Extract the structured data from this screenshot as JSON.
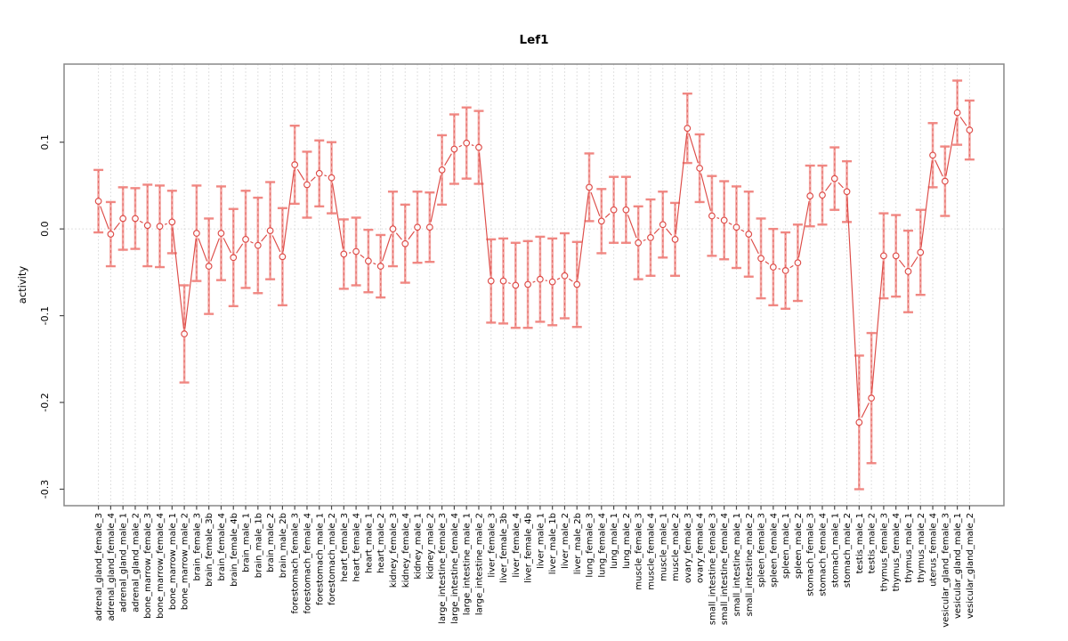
{
  "chart_data": {
    "type": "line",
    "title": "Lef1",
    "xlabel": "",
    "ylabel": "activity",
    "ylim": [
      -0.319,
      0.19
    ],
    "yticks": [
      0.1,
      0.0,
      -0.1,
      -0.2,
      -0.3
    ],
    "ytick_labels": [
      "0.1",
      "0.0",
      "-0.1",
      "-0.2",
      "-0.3"
    ],
    "grid": "dotted vertical line at every category; dotted horizontal line at y=0",
    "legend": "none",
    "error_bars": true,
    "marker": "open-circle",
    "categories": [
      "adrenal_gland_female_3",
      "adrenal_gland_female_4",
      "adrenal_gland_male_1",
      "adrenal_gland_male_2",
      "bone_marrow_female_3",
      "bone_marrow_female_4",
      "bone_marrow_male_1",
      "bone_marrow_male_2",
      "brain_female_3",
      "brain_female_3b",
      "brain_female_4",
      "brain_female_4b",
      "brain_male_1",
      "brain_male_1b",
      "brain_male_2",
      "brain_male_2b",
      "forestomach_female_3",
      "forestomach_female_4",
      "forestomach_male_1",
      "forestomach_male_2",
      "heart_female_3",
      "heart_female_4",
      "heart_male_1",
      "heart_male_2",
      "kidney_female_3",
      "kidney_female_4",
      "kidney_male_1",
      "kidney_male_2",
      "large_intestine_female_3",
      "large_intestine_female_4",
      "large_intestine_male_1",
      "large_intestine_male_2",
      "liver_female_3",
      "liver_female_3b",
      "liver_female_4",
      "liver_female_4b",
      "liver_male_1",
      "liver_male_1b",
      "liver_male_2",
      "liver_male_2b",
      "lung_female_3",
      "lung_female_4",
      "lung_male_1",
      "lung_male_2",
      "muscle_female_3",
      "muscle_female_4",
      "muscle_male_1",
      "muscle_male_2",
      "ovary_female_3",
      "ovary_female_4",
      "small_intestine_female_3",
      "small_intestine_female_4",
      "small_intestine_male_1",
      "small_intestine_male_2",
      "spleen_female_3",
      "spleen_female_4",
      "spleen_male_1",
      "spleen_male_2",
      "stomach_female_3",
      "stomach_female_4",
      "stomach_male_1",
      "stomach_male_2",
      "testis_male_1",
      "testis_male_2",
      "thymus_female_3",
      "thymus_female_4",
      "thymus_male_1",
      "thymus_male_2",
      "uterus_female_4",
      "vesicular_gland_female_3",
      "vesicular_gland_male_1",
      "vesicular_gland_male_2"
    ],
    "series": [
      {
        "name": "activity",
        "values": [
          0.032,
          -0.006,
          0.012,
          0.012,
          0.004,
          0.003,
          0.008,
          -0.121,
          -0.005,
          -0.043,
          -0.005,
          -0.033,
          -0.012,
          -0.019,
          -0.002,
          -0.032,
          0.074,
          0.051,
          0.064,
          0.059,
          -0.029,
          -0.026,
          -0.037,
          -0.043,
          0.0,
          -0.017,
          0.002,
          0.002,
          0.068,
          0.092,
          0.099,
          0.094,
          -0.06,
          -0.06,
          -0.065,
          -0.064,
          -0.058,
          -0.061,
          -0.054,
          -0.064,
          0.048,
          0.009,
          0.022,
          0.022,
          -0.016,
          -0.01,
          0.005,
          -0.012,
          0.116,
          0.07,
          0.015,
          0.01,
          0.002,
          -0.006,
          -0.034,
          -0.044,
          -0.048,
          -0.039,
          0.038,
          0.039,
          0.058,
          0.043,
          -0.223,
          -0.195,
          -0.031,
          -0.031,
          -0.049,
          -0.027,
          0.085,
          0.055,
          0.134,
          0.114
        ],
        "errors": [
          0.036,
          0.037,
          0.036,
          0.035,
          0.047,
          0.047,
          0.036,
          0.056,
          0.055,
          0.055,
          0.054,
          0.056,
          0.056,
          0.055,
          0.056,
          0.056,
          0.045,
          0.038,
          0.038,
          0.041,
          0.04,
          0.039,
          0.036,
          0.036,
          0.043,
          0.045,
          0.041,
          0.04,
          0.04,
          0.04,
          0.041,
          0.042,
          0.048,
          0.049,
          0.049,
          0.05,
          0.049,
          0.05,
          0.049,
          0.049,
          0.039,
          0.037,
          0.038,
          0.038,
          0.042,
          0.044,
          0.038,
          0.042,
          0.04,
          0.039,
          0.046,
          0.045,
          0.047,
          0.049,
          0.046,
          0.044,
          0.044,
          0.044,
          0.035,
          0.034,
          0.036,
          0.035,
          0.077,
          0.075,
          0.049,
          0.047,
          0.047,
          0.049,
          0.037,
          0.04,
          0.037,
          0.034
        ]
      }
    ],
    "colors": {
      "series_red": "#dd4b47",
      "errorbar_pink": "#f0827d",
      "grid_gray": "#d6d6d6",
      "box_gray": "#898989",
      "tick_gray": "#4a4a4a",
      "text_black": "#000000",
      "background": "#ffffff"
    }
  }
}
